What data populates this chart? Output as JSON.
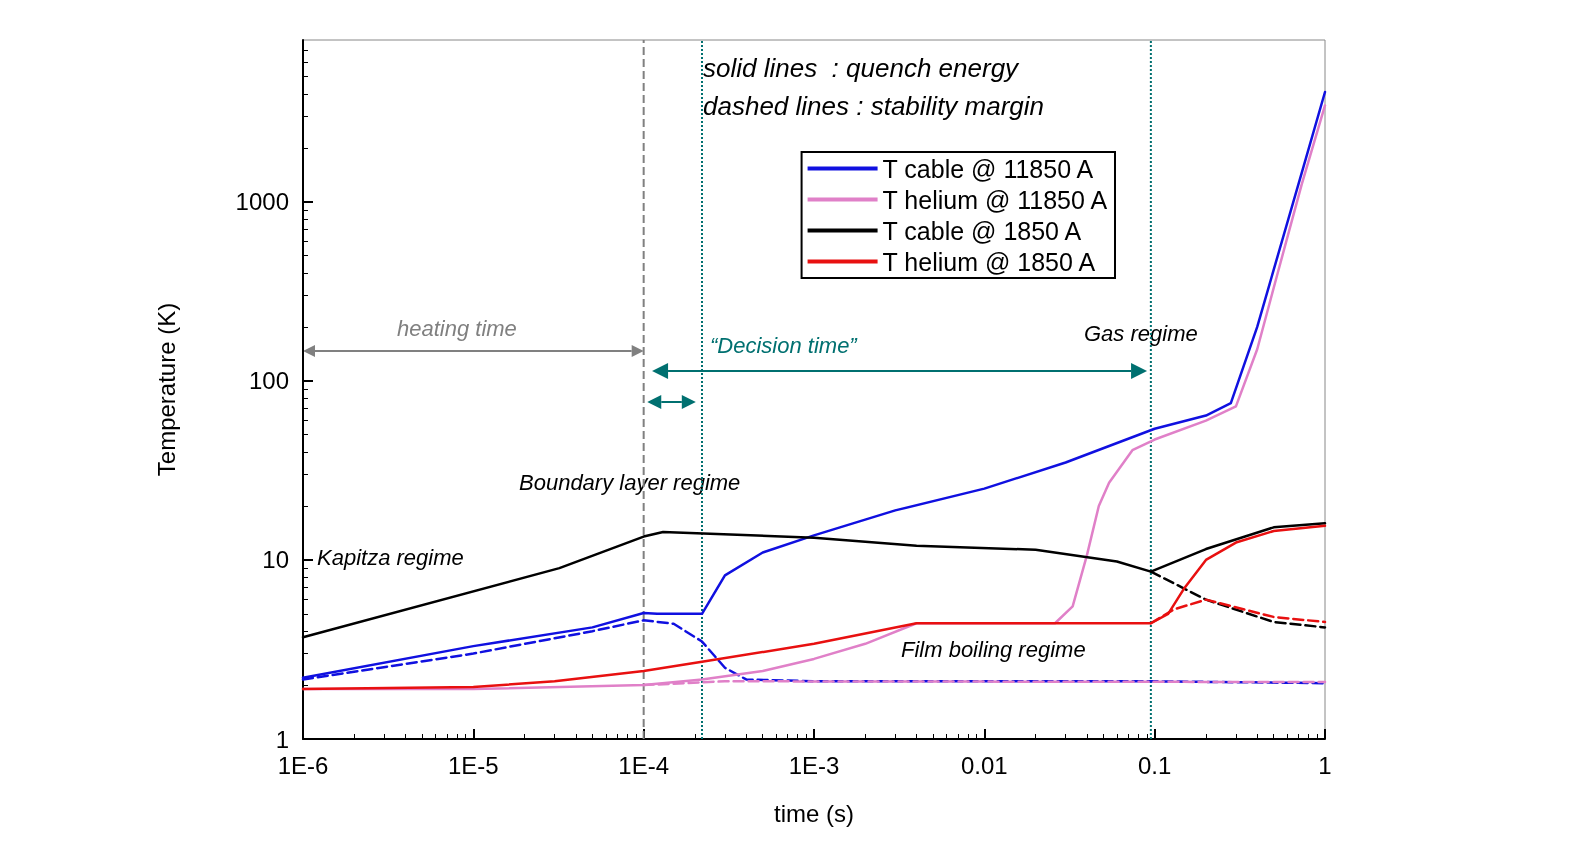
{
  "chart_data": {
    "type": "line",
    "xlabel": "time (s)",
    "ylabel": "Temperature (K)",
    "log": "xy",
    "xlim": [
      1e-06,
      1
    ],
    "ylim": [
      1,
      8000
    ],
    "xticks": [
      {
        "value": 1e-06,
        "label": "1E-6"
      },
      {
        "value": 1e-05,
        "label": "1E-5"
      },
      {
        "value": 0.0001,
        "label": "1E-4"
      },
      {
        "value": 0.001,
        "label": "1E-3"
      },
      0.01,
      0.1,
      1
    ],
    "yticks": [
      1,
      10,
      100,
      1000
    ],
    "grid": false,
    "legend": "top right",
    "series": [
      {
        "name": "T cable @ 11850 A",
        "color": "#1010e0",
        "x": [
          1e-06,
          1e-05,
          5e-05,
          0.0001,
          0.00012,
          0.00022,
          0.0003,
          0.0005,
          0.001,
          0.003,
          0.01,
          0.03,
          0.1,
          0.2,
          0.28,
          0.4,
          0.52,
          0.73,
          1
        ],
        "values": [
          2.2,
          3.3,
          4.2,
          5.05,
          5.0,
          5.0,
          8.2,
          11,
          13.7,
          18.9,
          25,
          35,
          54,
          64,
          75,
          200,
          475,
          1450,
          4100
        ]
      },
      {
        "name": "T helium @ 11850 A",
        "color": "#e080c8",
        "x": [
          1e-06,
          1e-05,
          0.0001,
          0.00022,
          0.0005,
          0.001,
          0.002,
          0.004,
          0.026,
          0.033,
          0.04,
          0.047,
          0.054,
          0.074,
          0.1,
          0.2,
          0.3,
          0.4,
          0.52,
          0.73,
          1
        ],
        "values": [
          1.9,
          1.9,
          2.0,
          2.15,
          2.4,
          2.8,
          3.4,
          4.43,
          4.43,
          5.5,
          10.6,
          20,
          27,
          41,
          47,
          60,
          72,
          150,
          380,
          1250,
          3450
        ]
      },
      {
        "name": "T cable @ 1850 A",
        "color": "#000000",
        "x": [
          1e-06,
          3.2e-05,
          0.0001,
          0.00013,
          0.001,
          0.004,
          0.02,
          0.06,
          0.095,
          0.2,
          0.5,
          1
        ],
        "values": [
          3.7,
          9.0,
          13.5,
          14.3,
          13.3,
          12.0,
          11.4,
          9.8,
          8.6,
          11.5,
          15.2,
          16
        ]
      },
      {
        "name": "T helium @ 1850 A",
        "color": "#e81010",
        "x": [
          1e-06,
          1e-05,
          3e-05,
          0.0001,
          0.00022,
          0.001,
          0.004,
          0.095,
          0.12,
          0.15,
          0.2,
          0.3,
          0.5,
          1
        ],
        "values": [
          1.9,
          1.95,
          2.1,
          2.4,
          2.7,
          3.4,
          4.43,
          4.43,
          5,
          7,
          10,
          12.5,
          14.5,
          15.5
        ]
      },
      {
        "color": "#1010e0",
        "line_style": "dashed",
        "x": [
          1e-06,
          1e-05,
          5e-05,
          0.0001,
          0.00015,
          0.00022,
          0.0003,
          0.0004,
          0.001,
          0.1,
          1
        ],
        "values": [
          2.15,
          3.0,
          4.0,
          4.6,
          4.4,
          3.5,
          2.5,
          2.15,
          2.1,
          2.1,
          2.05
        ]
      },
      {
        "color": "#e080c8",
        "line_style": "dashed",
        "x": [
          0.0001,
          0.0003,
          1
        ],
        "values": [
          2.0,
          2.1,
          2.08
        ]
      },
      {
        "color": "#000000",
        "line_style": "dashed",
        "x": [
          0.095,
          0.2,
          0.5,
          1
        ],
        "values": [
          8.6,
          6.0,
          4.5,
          4.2
        ]
      },
      {
        "color": "#e81010",
        "line_style": "dashed",
        "x": [
          0.095,
          0.13,
          0.2,
          0.5,
          1
        ],
        "values": [
          4.43,
          5.3,
          6.0,
          4.8,
          4.5
        ]
      }
    ],
    "ref_lines": [
      {
        "axis": "x",
        "value": 0.0001,
        "color": "#808080",
        "line_style": "dashed"
      },
      {
        "axis": "x",
        "value": 0.00022,
        "color": "#007070",
        "line_style": "dotted"
      },
      {
        "axis": "x",
        "value": 0.095,
        "color": "#007070",
        "line_style": "dotted"
      }
    ],
    "annotations": [
      "solid lines  : quench energy",
      "dashed lines : stability margin",
      "heating time",
      "“Decision time”",
      "Gas regime",
      "Boundary layer regime",
      "Kapitza regime",
      "Film boiling regime"
    ]
  }
}
